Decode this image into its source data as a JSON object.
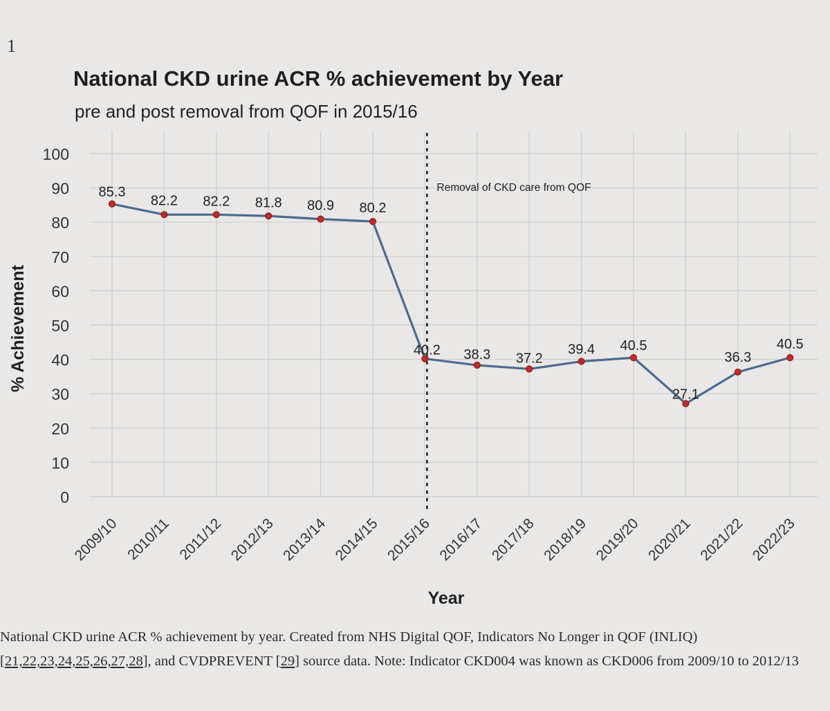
{
  "page_number": "1",
  "chart_data": {
    "type": "line",
    "title": "National CKD urine ACR % achievement by Year",
    "subtitle": "pre and post removal from QOF in 2015/16",
    "xlabel": "Year",
    "ylabel": "% Achievement",
    "ylim": [
      0,
      100
    ],
    "yticks": [
      0,
      10,
      20,
      30,
      40,
      50,
      60,
      70,
      80,
      90,
      100
    ],
    "grid": true,
    "categories": [
      "2009/10",
      "2010/11",
      "2011/12",
      "2012/13",
      "2013/14",
      "2014/15",
      "2015/16",
      "2016/17",
      "2017/18",
      "2018/19",
      "2019/20",
      "2020/21",
      "2021/22",
      "2022/23"
    ],
    "series": [
      {
        "values": [
          85.3,
          82.2,
          82.2,
          81.8,
          80.9,
          80.2,
          40.2,
          38.3,
          37.2,
          39.4,
          40.5,
          27.1,
          36.3,
          40.5
        ]
      }
    ],
    "data_labels": [
      "85.3",
      "82.2",
      "82.2",
      "81.8",
      "80.9",
      "80.2",
      "40.2",
      "38.3",
      "37.2",
      "39.4",
      "40.5",
      "27.1",
      "36.3",
      "40.5"
    ],
    "annotation": {
      "text": "Removal of CKD care from QOF",
      "at_category": "2015/16",
      "style": "dashed vertical line"
    },
    "colors": {
      "line": "#4b6a8e",
      "marker": "#c0292b",
      "grid": "#cfcfcf"
    }
  },
  "caption": {
    "part1": "National CKD urine ACR % achievement by year. Created from NHS Digital QOF, Indicators No Longer in QOF (INLIQ) [",
    "refs1": "21,22,23,24,25,26,27,28",
    "part2": "], and CVDPREVENT [",
    "refs2": "29",
    "part3": "] source data. Note: Indicator CKD004 was known as CKD006 from 2009/10 to 2012/13"
  }
}
